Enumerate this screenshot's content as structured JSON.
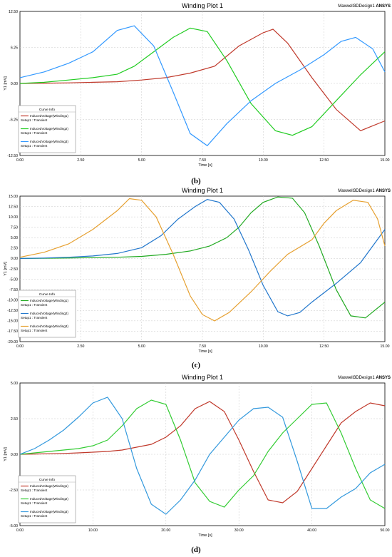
{
  "chart_data": [
    {
      "type": "line",
      "title": "Winding Plot 1",
      "brand_left": "Maxwell3DDesign1",
      "brand_right": "ANSYS",
      "xlabel": "Time [s]",
      "ylabel": "Y1 [mV]",
      "xlim": [
        0,
        15
      ],
      "ylim": [
        -12.5,
        12.5
      ],
      "xticks": [
        "0.00",
        "2.50",
        "5.00",
        "7.50",
        "10.00",
        "12.50",
        "15.00"
      ],
      "yticks": [
        "12.50",
        "6.25",
        "0.00",
        "-6.25",
        "-12.50"
      ],
      "legend_title": "Curve Info",
      "legend_position": "bottom-left",
      "caption": "(b)",
      "grid": true,
      "series": [
        {
          "name": "InducedVoltage(Winding1)",
          "setup": "Setup1 : Transient",
          "color": "#c0392b",
          "x": [
            0,
            1,
            2,
            3,
            4,
            5,
            6,
            7,
            8,
            9,
            10,
            10.4,
            11,
            12,
            13,
            14,
            15
          ],
          "y": [
            0,
            0.05,
            0.1,
            0.2,
            0.3,
            0.6,
            1.0,
            1.8,
            3.0,
            6.5,
            8.8,
            9.4,
            7.0,
            1.0,
            -4.5,
            -8.2,
            -6.5
          ]
        },
        {
          "name": "InducedVoltage(Winding2)",
          "setup": "Setup1 : Transient",
          "color": "#22cc22",
          "x": [
            0,
            1,
            2,
            3,
            4,
            4.7,
            5.5,
            6.3,
            7.0,
            7.7,
            8.5,
            9.5,
            10.5,
            11.2,
            12.0,
            13.0,
            14.0,
            15.0
          ],
          "y": [
            0,
            0.2,
            0.6,
            1.0,
            1.6,
            3.0,
            5.5,
            8.0,
            9.6,
            9.0,
            4.0,
            -3.5,
            -8.2,
            -9.0,
            -7.5,
            -3.0,
            1.5,
            5.5
          ]
        },
        {
          "name": "InducedVoltage(Winding3)",
          "setup": "Setup1 : Transient",
          "color": "#3399ff",
          "x": [
            0,
            1,
            2,
            3,
            4,
            4.7,
            5.5,
            6.3,
            7.0,
            7.7,
            8.5,
            9.5,
            10.5,
            11.5,
            12.5,
            13.2,
            13.8,
            14.5,
            15.0
          ],
          "y": [
            1.0,
            2.0,
            3.5,
            5.5,
            9.2,
            10.0,
            6.5,
            -1.5,
            -8.7,
            -10.8,
            -7.0,
            -3.0,
            0.0,
            2.3,
            5.0,
            7.3,
            8.0,
            6.0,
            2.0
          ]
        }
      ]
    },
    {
      "type": "line",
      "title": "Winding Plot 1",
      "brand_left": "Maxwell3DDesign1",
      "brand_right": "ANSYS",
      "xlabel": "Time [s]",
      "ylabel": "Y1 [mV]",
      "xlim": [
        0,
        15
      ],
      "ylim": [
        -20,
        15
      ],
      "xticks": [
        "0.00",
        "2.50",
        "5.00",
        "7.50",
        "10.00",
        "12.50",
        "15.00"
      ],
      "yticks": [
        "15.00",
        "12.50",
        "10.00",
        "7.50",
        "5.00",
        "2.50",
        "0.00",
        "-2.50",
        "-5.00",
        "-7.50",
        "-10.00",
        "-12.50",
        "-15.00",
        "-17.50",
        "-20.00"
      ],
      "legend_title": "Curve Info",
      "legend_position": "bottom-left",
      "caption": "(c)",
      "grid": true,
      "series": [
        {
          "name": "InducedVoltage(Winding1)",
          "setup": "Setup1 : Transient",
          "color": "#22aa22",
          "x": [
            0,
            1,
            2,
            3,
            4,
            5,
            6,
            7,
            7.8,
            8.5,
            9.0,
            9.5,
            10.0,
            10.6,
            11.2,
            11.7,
            12.3,
            13.0,
            13.6,
            14.2,
            15.0
          ],
          "y": [
            0,
            0.05,
            0.1,
            0.2,
            0.3,
            0.5,
            1.0,
            1.8,
            3.0,
            5.0,
            7.5,
            11.0,
            13.5,
            14.8,
            14.5,
            11.0,
            3.0,
            -7.5,
            -13.8,
            -14.3,
            -10.5
          ]
        },
        {
          "name": "InducedVoltage(Winding2)",
          "setup": "Setup1 : Transient",
          "color": "#2277cc",
          "x": [
            0,
            1,
            2,
            3,
            4,
            5,
            5.8,
            6.5,
            7.2,
            7.7,
            8.2,
            8.8,
            9.4,
            10.0,
            10.6,
            11.0,
            11.5,
            12.0,
            13.0,
            14.0,
            15.0
          ],
          "y": [
            0,
            0.1,
            0.3,
            0.6,
            1.2,
            2.6,
            5.5,
            9.5,
            12.5,
            14.2,
            13.5,
            9.5,
            2.0,
            -6.5,
            -12.8,
            -13.8,
            -13.0,
            -10.5,
            -6.0,
            -1.0,
            7.0
          ]
        },
        {
          "name": "InducedVoltage(Winding3)",
          "setup": "Setup1 : Transient",
          "color": "#e6a030",
          "x": [
            0,
            1,
            2,
            3,
            4,
            4.5,
            5.0,
            5.6,
            6.3,
            7.0,
            7.5,
            8.0,
            8.6,
            9.5,
            10.3,
            11.0,
            12.0,
            12.5,
            13.0,
            13.7,
            14.3,
            14.7,
            15.0
          ],
          "y": [
            0.3,
            1.5,
            3.5,
            7.0,
            11.5,
            14.4,
            14.0,
            10.0,
            1.0,
            -9.0,
            -13.5,
            -15.0,
            -13.0,
            -8.0,
            -3.0,
            1.0,
            4.5,
            8.5,
            11.5,
            14.0,
            13.5,
            9.5,
            3.0
          ]
        }
      ]
    },
    {
      "type": "line",
      "title": "Winding Plot 1",
      "brand_left": "Maxwell3DDesign1",
      "brand_right": "ANSYS",
      "xlabel": "Time [s]",
      "ylabel": "Y1 [mV]",
      "xlim": [
        0,
        50
      ],
      "ylim": [
        -5,
        5
      ],
      "xticks": [
        "0.00",
        "10.00",
        "20.00",
        "30.00",
        "40.00",
        "50.00"
      ],
      "yticks": [
        "5.00",
        "2.50",
        "0.00",
        "-2.50",
        "-5.00"
      ],
      "legend_title": "Curve Info",
      "legend_position": "bottom-left",
      "caption": "(d)",
      "grid": true,
      "series": [
        {
          "name": "InducedVoltage(Winding1)",
          "setup": "Setup1 : Transient",
          "color": "#c0392b",
          "x": [
            0,
            2,
            4,
            6,
            8,
            10,
            12,
            14,
            16,
            18,
            20,
            22,
            24,
            26,
            28,
            30,
            32,
            34,
            36,
            38,
            40,
            42,
            44,
            46,
            48,
            50
          ],
          "y": [
            0,
            0.02,
            0.04,
            0.06,
            0.1,
            0.15,
            0.2,
            0.3,
            0.5,
            0.7,
            1.2,
            2.0,
            3.2,
            3.7,
            3.0,
            1.0,
            -1.2,
            -3.2,
            -3.4,
            -2.6,
            -1.0,
            0.6,
            2.2,
            3.0,
            3.6,
            3.4
          ]
        },
        {
          "name": "InducedVoltage(Winding2)",
          "setup": "Setup1 : Transient",
          "color": "#33cc33",
          "x": [
            0,
            2,
            4,
            6,
            8,
            10,
            12,
            14,
            16,
            18,
            20,
            22,
            24,
            26,
            28,
            30,
            32,
            34,
            36,
            38,
            40,
            42,
            44,
            46,
            48,
            50
          ],
          "y": [
            0,
            0.1,
            0.2,
            0.3,
            0.4,
            0.6,
            1.0,
            2.0,
            3.2,
            3.8,
            3.5,
            1.0,
            -2.0,
            -3.3,
            -3.7,
            -2.5,
            -1.5,
            0.2,
            1.5,
            2.5,
            3.5,
            3.6,
            1.5,
            -1.0,
            -3.2,
            -3.8
          ]
        },
        {
          "name": "InducedVoltage(Winding3)",
          "setup": "Setup1 : Transient",
          "color": "#3399dd",
          "x": [
            0,
            2,
            4,
            6,
            8,
            10,
            12,
            14,
            16,
            18,
            20,
            22,
            24,
            26,
            28,
            30,
            32,
            34,
            36,
            38,
            40,
            42,
            44,
            46,
            48,
            50
          ],
          "y": [
            0,
            0.4,
            1.0,
            1.7,
            2.6,
            3.6,
            4.0,
            2.5,
            -1.0,
            -3.5,
            -4.2,
            -3.2,
            -1.8,
            0.0,
            1.2,
            2.4,
            3.2,
            3.3,
            2.6,
            -0.5,
            -3.8,
            -3.8,
            -3.0,
            -2.4,
            -1.3,
            -0.7
          ]
        }
      ]
    }
  ]
}
